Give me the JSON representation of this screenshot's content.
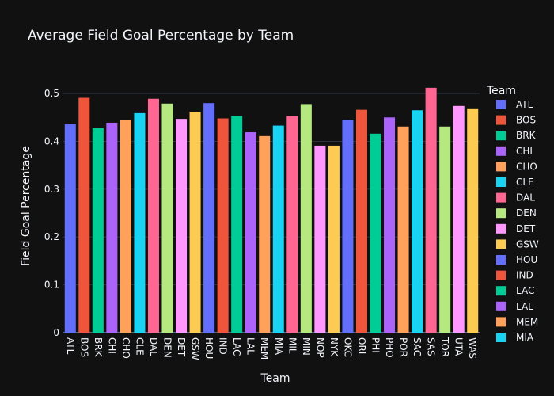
{
  "chart_data": {
    "type": "bar",
    "title": "Average Field Goal Percentage by Team",
    "xlabel": "Team",
    "ylabel": "Field Goal Percentage",
    "ylim": [
      0,
      0.53
    ],
    "yticks": [
      "0",
      "0.1",
      "0.2",
      "0.3",
      "0.4",
      "0.5"
    ],
    "grid": true,
    "legend_title": "Team",
    "legend_position": "right",
    "categories": [
      "ATL",
      "BOS",
      "BRK",
      "CHI",
      "CHO",
      "CLE",
      "DAL",
      "DEN",
      "DET",
      "GSW",
      "HOU",
      "IND",
      "LAC",
      "LAL",
      "MEM",
      "MIA",
      "MIL",
      "MIN",
      "NOP",
      "NYK",
      "OKC",
      "ORL",
      "PHI",
      "PHO",
      "POR",
      "SAC",
      "SAS",
      "TOR",
      "UTA",
      "WAS"
    ],
    "values": [
      0.436,
      0.491,
      0.428,
      0.439,
      0.444,
      0.459,
      0.489,
      0.479,
      0.447,
      0.462,
      0.48,
      0.448,
      0.453,
      0.419,
      0.411,
      0.433,
      0.453,
      0.478,
      0.391,
      0.391,
      0.445,
      0.466,
      0.416,
      0.45,
      0.431,
      0.465,
      0.512,
      0.431,
      0.474,
      0.469
    ],
    "colors": [
      "#636efa",
      "#EF553B",
      "#00cc96",
      "#ab63fa",
      "#FFA15A",
      "#19d3f3",
      "#FF6692",
      "#B6E880",
      "#FF97FF",
      "#FECB52"
    ],
    "legend_visible": [
      "ATL",
      "BOS",
      "BRK",
      "CHI",
      "CHO",
      "CLE",
      "DAL",
      "DEN",
      "DET",
      "GSW",
      "HOU",
      "IND",
      "LAC",
      "LAL",
      "MEM",
      "MIA"
    ]
  }
}
